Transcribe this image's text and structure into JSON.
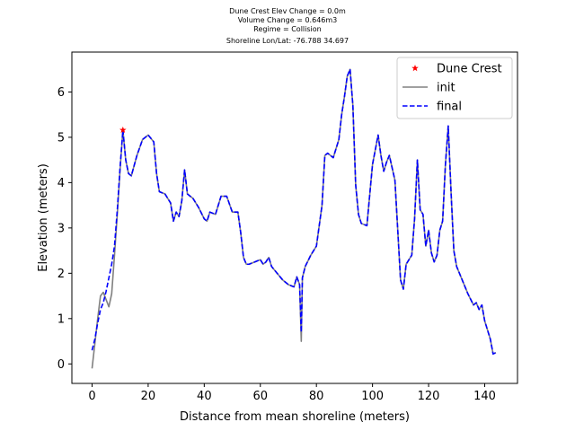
{
  "chart_data": {
    "type": "line",
    "title_lines": [
      "Dune Crest Elev Change = 0.0m",
      "Volume Change = 0.646m3",
      "Regime = Collision",
      "Shoreline Lon/Lat: -76.788 34.697"
    ],
    "xlabel": "Distance from mean shoreline (meters)",
    "ylabel": "Elevation (meters)",
    "xlim": [
      -7.2,
      151.7
    ],
    "ylim": [
      -0.43,
      6.88
    ],
    "xticks": [
      0,
      20,
      40,
      60,
      80,
      100,
      120,
      140
    ],
    "yticks": [
      0,
      1,
      2,
      3,
      4,
      5,
      6
    ],
    "grid": false,
    "legend_location": "top-right",
    "colors": {
      "dune_crest": "#ff0000",
      "init": "#808080",
      "final": "#0000ff"
    },
    "series": [
      {
        "name": "Dune Crest",
        "style": "marker-star",
        "x": [
          11
        ],
        "y": [
          5.16
        ]
      },
      {
        "name": "init",
        "style": "solid",
        "x": [
          0,
          1,
          2,
          3,
          4,
          5,
          6,
          7,
          8,
          9,
          10,
          11,
          12,
          13,
          14,
          16,
          18,
          20,
          22,
          23,
          24,
          26,
          28,
          29,
          30,
          31,
          32,
          33,
          34,
          36,
          38,
          40,
          41,
          42,
          44,
          46,
          48,
          50,
          52,
          53,
          54,
          55,
          56,
          58,
          60,
          61,
          62,
          63,
          64,
          66,
          68,
          70,
          72,
          73,
          74,
          74.6,
          75,
          76,
          78,
          80,
          82,
          83,
          84,
          86,
          88,
          89,
          90,
          91,
          92,
          93,
          94,
          95,
          96,
          98,
          100,
          102,
          103,
          104,
          105,
          106,
          108,
          110,
          111,
          112,
          113,
          114,
          115,
          116,
          117,
          118,
          119,
          120,
          121,
          122,
          123,
          124,
          125,
          126,
          127,
          128,
          129,
          130,
          132,
          134,
          136,
          137,
          138,
          139,
          140,
          141,
          142,
          143,
          144
        ],
        "y": [
          -0.1,
          0.45,
          1.0,
          1.5,
          1.58,
          1.42,
          1.26,
          1.55,
          2.4,
          3.3,
          4.3,
          5.16,
          4.5,
          4.2,
          4.15,
          4.6,
          4.95,
          5.05,
          4.9,
          4.2,
          3.8,
          3.75,
          3.55,
          3.15,
          3.35,
          3.25,
          3.6,
          4.28,
          3.75,
          3.65,
          3.45,
          3.2,
          3.15,
          3.35,
          3.3,
          3.7,
          3.7,
          3.35,
          3.35,
          2.9,
          2.35,
          2.2,
          2.2,
          2.25,
          2.3,
          2.2,
          2.25,
          2.35,
          2.15,
          2.0,
          1.85,
          1.75,
          1.7,
          1.92,
          1.75,
          0.5,
          1.9,
          2.15,
          2.4,
          2.6,
          3.5,
          4.6,
          4.65,
          4.55,
          4.95,
          5.5,
          5.9,
          6.35,
          6.5,
          5.7,
          3.95,
          3.3,
          3.1,
          3.05,
          4.4,
          5.05,
          4.6,
          4.25,
          4.45,
          4.6,
          4.05,
          1.85,
          1.65,
          2.2,
          2.3,
          2.4,
          3.2,
          4.5,
          3.4,
          3.3,
          2.6,
          2.95,
          2.45,
          2.25,
          2.4,
          2.95,
          3.15,
          4.4,
          5.25,
          3.8,
          2.5,
          2.15,
          1.85,
          1.55,
          1.3,
          1.35,
          1.2,
          1.3,
          0.95,
          0.75,
          0.55,
          0.22,
          0.25
        ]
      },
      {
        "name": "final",
        "style": "dashed",
        "x": [
          0,
          1,
          2,
          3,
          4,
          5,
          6,
          7,
          8,
          9,
          10,
          11,
          12,
          13,
          14,
          16,
          18,
          20,
          22,
          23,
          24,
          26,
          28,
          29,
          30,
          31,
          32,
          33,
          34,
          36,
          38,
          40,
          41,
          42,
          44,
          46,
          48,
          50,
          52,
          53,
          54,
          55,
          56,
          58,
          60,
          61,
          62,
          63,
          64,
          66,
          68,
          70,
          72,
          73,
          74,
          74.6,
          75,
          76,
          78,
          80,
          82,
          83,
          84,
          86,
          88,
          89,
          90,
          91,
          92,
          93,
          94,
          95,
          96,
          98,
          100,
          102,
          103,
          104,
          105,
          106,
          108,
          110,
          111,
          112,
          113,
          114,
          115,
          116,
          117,
          118,
          119,
          120,
          121,
          122,
          123,
          124,
          125,
          126,
          127,
          128,
          129,
          130,
          132,
          134,
          136,
          137,
          138,
          139,
          140,
          141,
          142,
          143,
          144
        ],
        "y": [
          0.3,
          0.55,
          0.9,
          1.2,
          1.35,
          1.6,
          1.9,
          2.2,
          2.6,
          3.4,
          4.35,
          5.16,
          4.5,
          4.2,
          4.15,
          4.6,
          4.95,
          5.05,
          4.9,
          4.2,
          3.8,
          3.75,
          3.55,
          3.15,
          3.35,
          3.25,
          3.6,
          4.28,
          3.75,
          3.65,
          3.45,
          3.2,
          3.15,
          3.35,
          3.3,
          3.7,
          3.7,
          3.35,
          3.35,
          2.9,
          2.35,
          2.2,
          2.2,
          2.25,
          2.3,
          2.2,
          2.25,
          2.35,
          2.15,
          2.0,
          1.85,
          1.75,
          1.7,
          1.92,
          1.75,
          0.7,
          1.9,
          2.15,
          2.4,
          2.6,
          3.5,
          4.6,
          4.65,
          4.55,
          4.95,
          5.5,
          5.9,
          6.35,
          6.5,
          5.7,
          3.95,
          3.3,
          3.1,
          3.05,
          4.4,
          5.05,
          4.6,
          4.25,
          4.45,
          4.6,
          4.05,
          1.85,
          1.65,
          2.2,
          2.3,
          2.4,
          3.2,
          4.5,
          3.4,
          3.3,
          2.6,
          2.95,
          2.45,
          2.25,
          2.4,
          2.95,
          3.15,
          4.4,
          5.25,
          3.8,
          2.5,
          2.15,
          1.85,
          1.55,
          1.3,
          1.35,
          1.2,
          1.3,
          0.95,
          0.75,
          0.55,
          0.22,
          0.25
        ]
      }
    ]
  }
}
